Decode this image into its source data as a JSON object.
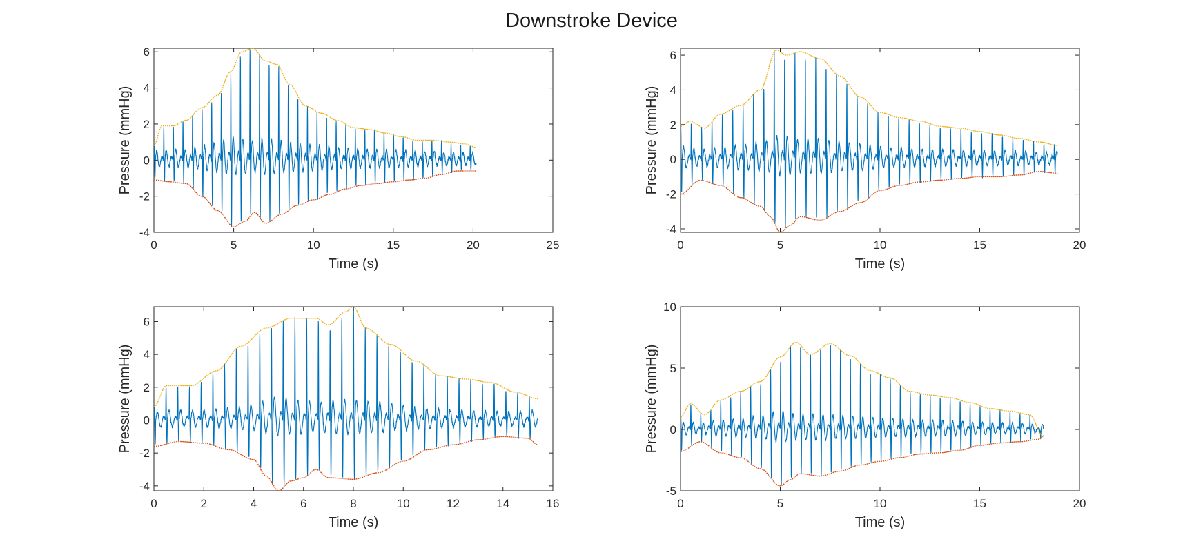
{
  "figure_title": "Downstroke Device",
  "colors": {
    "signal": "#0072BD",
    "upper_envelope": "#EDB120",
    "lower_envelope": "#D95319",
    "axes": "#262626"
  },
  "chart_data": [
    {
      "type": "line",
      "title": "",
      "xlabel": "Time (s)",
      "ylabel": "Pressure (mmHg)",
      "xlim": [
        0,
        25
      ],
      "ylim": [
        -4,
        6.2
      ],
      "xticks": [
        0,
        5,
        10,
        15,
        20,
        25
      ],
      "yticks": [
        -4,
        -2,
        0,
        2,
        4,
        6
      ],
      "grid": false,
      "duration": 20.2,
      "beat_period": 0.6,
      "baseline": 0,
      "upper_envelope": {
        "name": "",
        "x": [
          0,
          0.5,
          1.2,
          2,
          3,
          4,
          4.8,
          5.5,
          6.2,
          7,
          7.7,
          8.5,
          9.5,
          10.5,
          11.5,
          12.5,
          13.5,
          14.5,
          15.5,
          16.5,
          17.5,
          18.5,
          19.5,
          20.2
        ],
        "y": [
          0.8,
          1.9,
          1.9,
          2.2,
          2.9,
          3.6,
          4.9,
          6.0,
          6.2,
          5.5,
          5.3,
          4.2,
          3.0,
          2.6,
          2.2,
          1.8,
          1.7,
          1.5,
          1.3,
          1.1,
          1.1,
          1.0,
          0.9,
          0.7
        ]
      },
      "lower_envelope": {
        "name": "",
        "x": [
          0,
          1,
          2,
          3,
          4,
          5,
          5.7,
          6.3,
          7,
          8,
          9,
          10,
          11,
          12,
          13,
          14,
          15,
          16,
          17,
          18,
          19,
          20.2
        ],
        "y": [
          -1.1,
          -1.2,
          -1.3,
          -2.0,
          -2.8,
          -3.7,
          -3.4,
          -2.9,
          -3.5,
          -3.0,
          -2.5,
          -2.2,
          -1.9,
          -1.6,
          -1.4,
          -1.3,
          -1.2,
          -1.1,
          -1.0,
          -0.8,
          -0.6,
          -0.6
        ]
      }
    },
    {
      "type": "line",
      "title": "",
      "xlabel": "Time (s)",
      "ylabel": "Pressure (mmHg)",
      "xlim": [
        0,
        20
      ],
      "ylim": [
        -4.2,
        6.4
      ],
      "xticks": [
        0,
        5,
        10,
        15,
        20
      ],
      "yticks": [
        -4,
        -2,
        0,
        2,
        4,
        6
      ],
      "grid": false,
      "duration": 18.9,
      "beat_period": 0.52,
      "baseline": 0,
      "upper_envelope": {
        "name": "",
        "x": [
          0,
          0.5,
          1.2,
          2,
          3,
          4,
          4.8,
          5.3,
          6,
          7,
          8,
          9,
          10,
          11,
          12,
          13,
          14,
          15,
          16,
          17,
          18,
          18.9
        ],
        "y": [
          1.9,
          2.2,
          1.8,
          2.6,
          3.1,
          4.0,
          6.3,
          6.0,
          6.2,
          5.8,
          4.8,
          3.6,
          2.7,
          2.4,
          2.2,
          1.9,
          1.8,
          1.6,
          1.4,
          1.2,
          1.0,
          0.8
        ]
      },
      "lower_envelope": {
        "name": "",
        "x": [
          0,
          1,
          2,
          3,
          4,
          4.5,
          5,
          5.5,
          6,
          7,
          8,
          9,
          10,
          11,
          12,
          13,
          14,
          15,
          16,
          17,
          18,
          18.9
        ],
        "y": [
          -2.0,
          -1.2,
          -1.5,
          -2.2,
          -2.7,
          -3.3,
          -4.2,
          -3.8,
          -3.3,
          -3.5,
          -3.0,
          -2.5,
          -1.8,
          -1.5,
          -1.3,
          -1.2,
          -1.1,
          -1.0,
          -1.0,
          -0.9,
          -0.7,
          -0.8
        ]
      }
    },
    {
      "type": "line",
      "title": "",
      "xlabel": "Time (s)",
      "ylabel": "Pressure (mmHg)",
      "xlim": [
        0,
        16
      ],
      "ylim": [
        -4.3,
        6.9
      ],
      "xticks": [
        0,
        2,
        4,
        6,
        8,
        10,
        12,
        14,
        16
      ],
      "yticks": [
        -4,
        -2,
        0,
        2,
        4,
        6
      ],
      "grid": false,
      "duration": 15.4,
      "beat_period": 0.47,
      "baseline": 0,
      "upper_envelope": {
        "name": "",
        "x": [
          0,
          0.5,
          1.5,
          2.5,
          3.5,
          4.5,
          5.5,
          6.5,
          7,
          7.7,
          8,
          8.5,
          9.5,
          10.5,
          11.5,
          12.5,
          13.5,
          14.5,
          15.4
        ],
        "y": [
          0.8,
          2.1,
          2.1,
          3.0,
          4.5,
          5.6,
          6.2,
          6.2,
          5.8,
          6.6,
          6.9,
          5.6,
          4.6,
          3.6,
          2.7,
          2.5,
          2.3,
          1.7,
          1.3
        ]
      },
      "lower_envelope": {
        "name": "",
        "x": [
          0,
          1,
          2,
          3,
          4,
          4.5,
          5,
          5.5,
          6,
          6.5,
          7,
          8,
          9,
          10,
          11,
          12,
          13,
          14,
          15,
          15.4
        ],
        "y": [
          -1.6,
          -1.3,
          -1.4,
          -1.8,
          -2.4,
          -3.4,
          -4.3,
          -3.7,
          -3.5,
          -3.0,
          -3.5,
          -3.6,
          -3.2,
          -2.5,
          -1.8,
          -1.5,
          -1.2,
          -1.0,
          -1.1,
          -1.5
        ]
      }
    },
    {
      "type": "line",
      "title": "",
      "xlabel": "Time (s)",
      "ylabel": "Pressure (mmHg)",
      "xlim": [
        0,
        20
      ],
      "ylim": [
        -5,
        10
      ],
      "xticks": [
        0,
        5,
        10,
        15,
        20
      ],
      "yticks": [
        -5,
        0,
        5,
        10
      ],
      "grid": false,
      "duration": 18.2,
      "beat_period": 0.5,
      "baseline": 0,
      "upper_envelope": {
        "name": "",
        "x": [
          0,
          0.5,
          1.2,
          2,
          3,
          4,
          5,
          5.8,
          6.5,
          7.5,
          8.5,
          9.5,
          10.5,
          11.5,
          12.5,
          13.5,
          14.5,
          15.5,
          16.5,
          17.5,
          18.2
        ],
        "y": [
          1.0,
          2.1,
          1.2,
          2.4,
          3.1,
          3.9,
          5.9,
          7.1,
          6.1,
          7.0,
          6.0,
          4.8,
          4.2,
          3.1,
          2.8,
          2.6,
          2.2,
          1.7,
          1.5,
          1.2,
          -0.6
        ]
      },
      "lower_envelope": {
        "name": "",
        "x": [
          0,
          1,
          2,
          3,
          4,
          5,
          5.5,
          6,
          7,
          8,
          9,
          10,
          11,
          12,
          13,
          14,
          15,
          16,
          17,
          18,
          18.2
        ],
        "y": [
          -1.8,
          -1.0,
          -1.9,
          -2.3,
          -3.2,
          -4.6,
          -4.1,
          -3.6,
          -3.8,
          -3.4,
          -2.9,
          -2.6,
          -2.3,
          -2.0,
          -1.9,
          -1.7,
          -1.3,
          -1.1,
          -1.0,
          -0.8,
          -0.5
        ]
      }
    }
  ]
}
